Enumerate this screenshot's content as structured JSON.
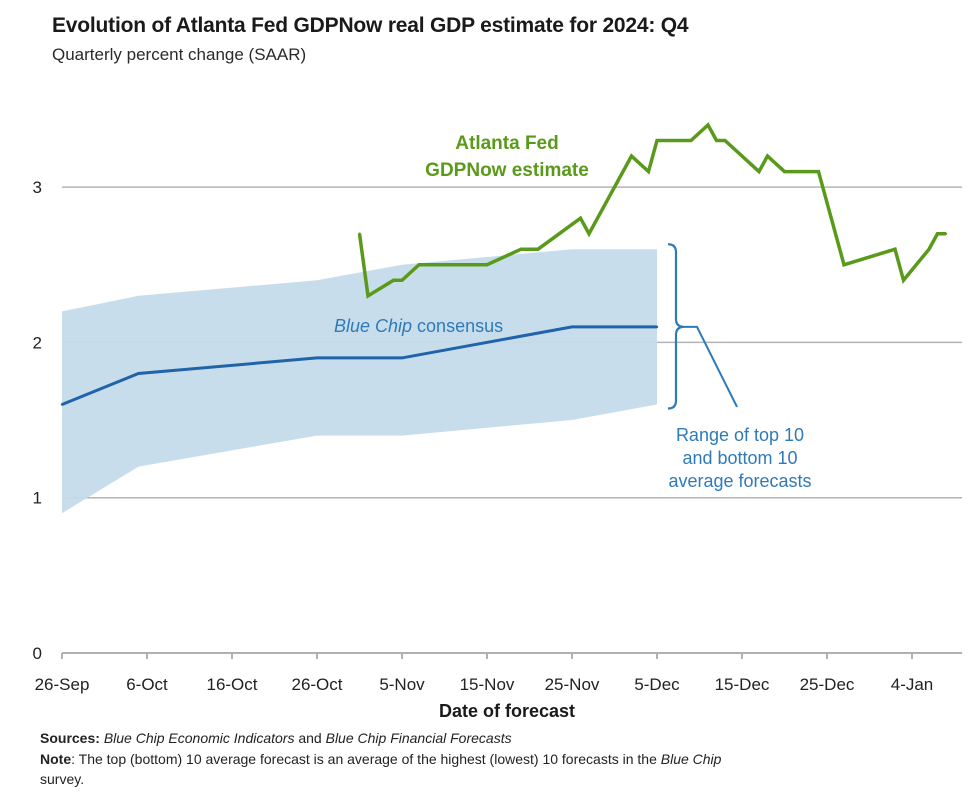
{
  "chart_data": {
    "type": "line",
    "title": "Evolution of Atlanta Fed GDPNow real GDP estimate for 2024: Q4",
    "subtitle": "Quarterly percent change (SAAR)",
    "xlabel": "Date of forecast",
    "ylabel": "",
    "ylim": [
      0,
      3.5
    ],
    "yticks": [
      0,
      1,
      2,
      3
    ],
    "grid": true,
    "x_day_range": [
      0,
      103
    ],
    "xticks": [
      {
        "day": 0,
        "label": "26-Sep"
      },
      {
        "day": 10,
        "label": "6-Oct"
      },
      {
        "day": 20,
        "label": "16-Oct"
      },
      {
        "day": 30,
        "label": "26-Oct"
      },
      {
        "day": 40,
        "label": "5-Nov"
      },
      {
        "day": 50,
        "label": "15-Nov"
      },
      {
        "day": 60,
        "label": "25-Nov"
      },
      {
        "day": 70,
        "label": "5-Dec"
      },
      {
        "day": 80,
        "label": "15-Dec"
      },
      {
        "day": 90,
        "label": "25-Dec"
      },
      {
        "day": 100,
        "label": "4-Jan"
      }
    ],
    "series": [
      {
        "name": "Atlanta Fed GDPNow estimate",
        "color": "#5a9a1a",
        "x_days": [
          35,
          36,
          39,
          40,
          42,
          50,
          54,
          56,
          61,
          62,
          67,
          69,
          70,
          74,
          76,
          77,
          78,
          82,
          83,
          85,
          89,
          92,
          98,
          99,
          102,
          103,
          104
        ],
        "values": [
          2.7,
          2.3,
          2.4,
          2.4,
          2.5,
          2.5,
          2.6,
          2.6,
          2.8,
          2.7,
          3.2,
          3.1,
          3.3,
          3.3,
          3.4,
          3.3,
          3.3,
          3.1,
          3.2,
          3.1,
          3.1,
          2.5,
          2.6,
          2.4,
          2.6,
          2.7,
          2.7
        ]
      },
      {
        "name": "Blue Chip consensus",
        "color": "#1f63a8",
        "x_days": [
          0,
          9,
          30,
          40,
          60,
          70
        ],
        "values": [
          1.6,
          1.8,
          1.9,
          1.9,
          2.1,
          2.1
        ]
      }
    ],
    "band": {
      "name": "Range of top 10 and bottom 10 average forecasts",
      "color": "#c5dbea",
      "x_days": [
        0,
        9,
        30,
        40,
        60,
        70
      ],
      "upper": [
        2.2,
        2.3,
        2.4,
        2.5,
        2.6,
        2.6
      ],
      "lower": [
        0.9,
        1.2,
        1.4,
        1.4,
        1.5,
        1.6
      ]
    },
    "annotations": {
      "green_line1": "Atlanta Fed",
      "green_line2": "GDPNow estimate",
      "bluechip_italic": "Blue Chip",
      "bluechip_rest": " consensus",
      "range_line1": "Range of top 10",
      "range_line2": "and bottom 10",
      "range_line3": "average forecasts"
    }
  },
  "footer": {
    "sources_label": "Sources:",
    "sources_italic1": "Blue Chip Economic Indicators",
    "sources_mid": " and ",
    "sources_italic2": "Blue Chip Financial Forecasts",
    "note_label": "Note",
    "note_text": ": The top (bottom) 10 average forecast is an average of the highest (lowest) 10 forecasts in the ",
    "note_italic": "Blue Chip",
    "note_end": "survey."
  },
  "colors": {
    "gdpnow": "#5a9a1a",
    "bluechip": "#1f63a8",
    "band": "#c5dbea",
    "annotation_blue": "#2f7ab9",
    "grid": "#b4b4b4"
  }
}
